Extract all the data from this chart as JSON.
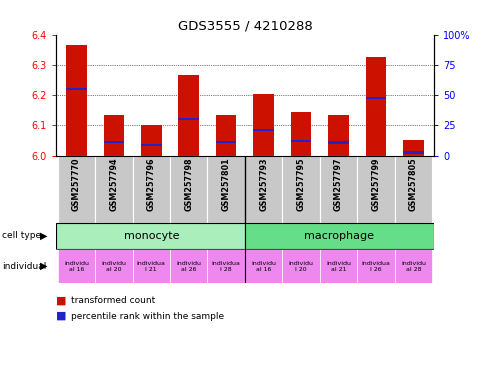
{
  "title": "GDS3555 / 4210288",
  "samples": [
    "GSM257770",
    "GSM257794",
    "GSM257796",
    "GSM257798",
    "GSM257801",
    "GSM257793",
    "GSM257795",
    "GSM257797",
    "GSM257799",
    "GSM257805"
  ],
  "red_values": [
    6.365,
    6.135,
    6.101,
    6.265,
    6.135,
    6.202,
    6.145,
    6.135,
    6.325,
    6.052
  ],
  "blue_values": [
    6.22,
    6.045,
    6.035,
    6.12,
    6.045,
    6.085,
    6.048,
    6.043,
    6.19,
    6.01
  ],
  "ylim_left": [
    6.0,
    6.4
  ],
  "ylim_right": [
    0,
    100
  ],
  "yticks_left": [
    6.0,
    6.1,
    6.2,
    6.3,
    6.4
  ],
  "yticks_right": [
    0,
    25,
    50,
    75,
    100
  ],
  "ytick_labels_right": [
    "0",
    "25",
    "50",
    "75",
    "100%"
  ],
  "bar_color_red": "#cc1100",
  "bar_color_blue": "#2222cc",
  "monocyte_color": "#aaeebb",
  "macrophage_color": "#66dd88",
  "individual_color": "#ee88ee",
  "sample_bg_color": "#cccccc",
  "base": 6.0,
  "indiv_labels": [
    "individu\nal 16",
    "individu\nal 20",
    "individua\nl 21",
    "individu\nal 26",
    "individua\nl 28",
    "individu\nal 16",
    "individu\nl 20",
    "individu\nal 21",
    "individua\nl 26",
    "individu\nal 28"
  ]
}
